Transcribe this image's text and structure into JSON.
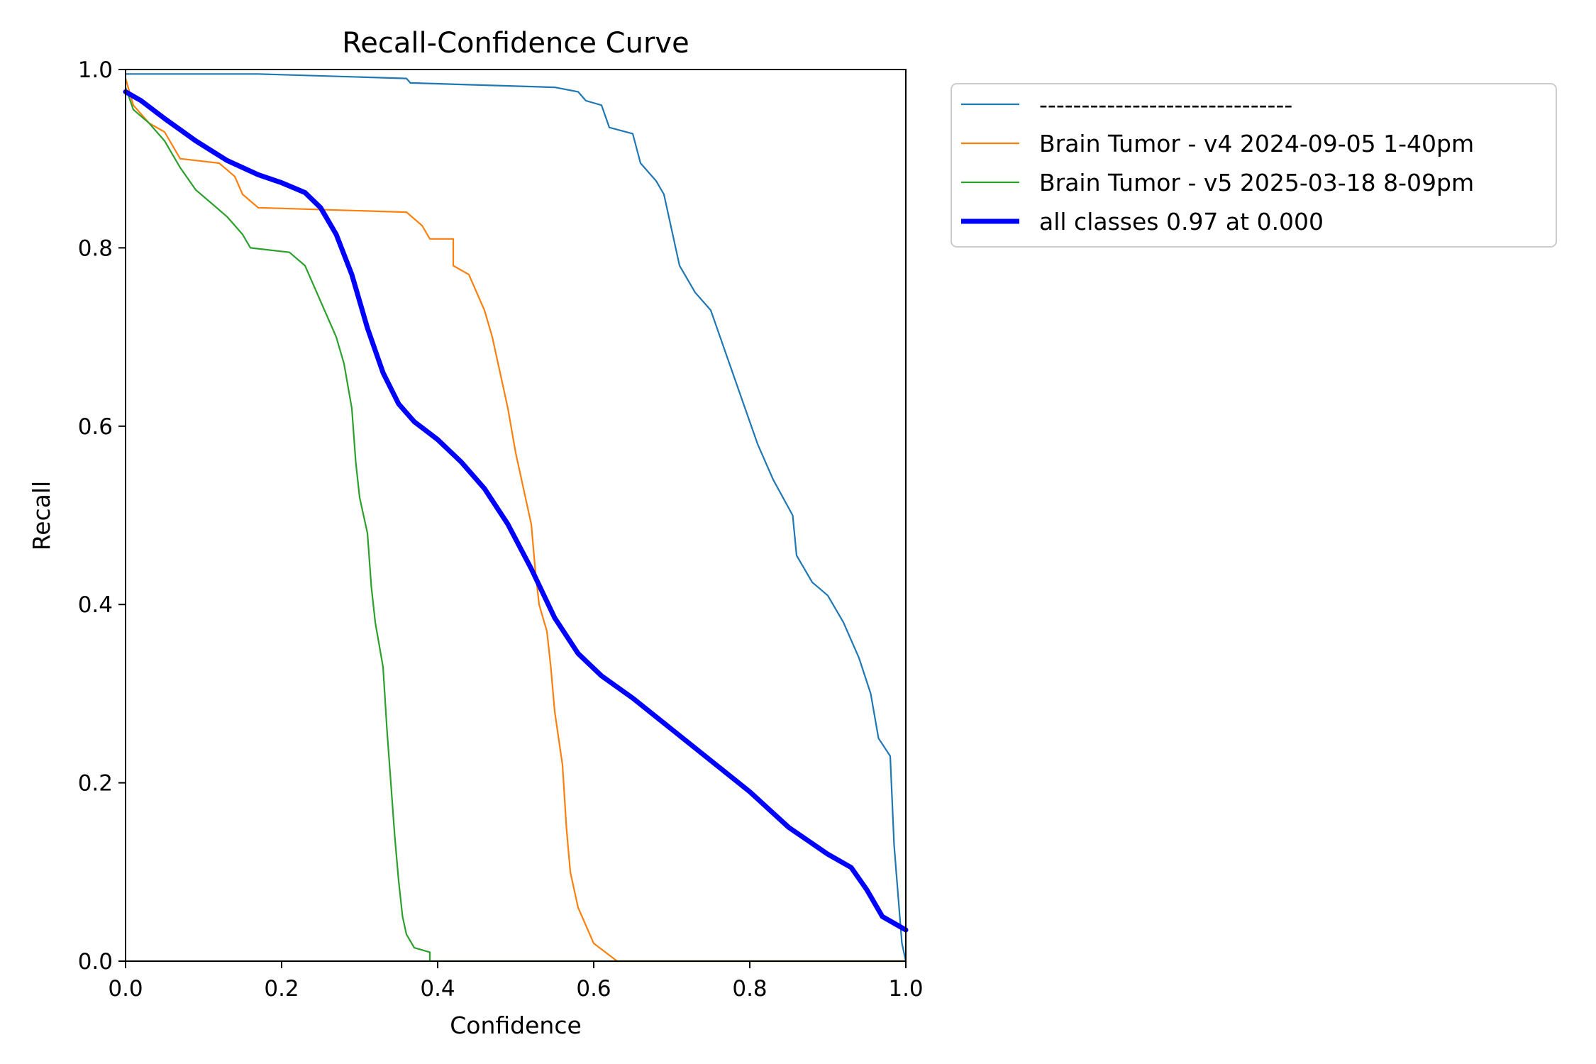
{
  "chart_data": {
    "type": "line",
    "title": "Recall-Confidence Curve",
    "xlabel": "Confidence",
    "ylabel": "Recall",
    "xlim": [
      0,
      1
    ],
    "ylim": [
      0,
      1
    ],
    "xticks": [
      "0.0",
      "0.2",
      "0.4",
      "0.6",
      "0.8",
      "1.0"
    ],
    "yticks": [
      "0.0",
      "0.2",
      "0.4",
      "0.6",
      "0.8",
      "1.0"
    ],
    "grid": false,
    "legend_position": "outside-top-right",
    "series": [
      {
        "name": "------------------------------",
        "color": "#1f77b4",
        "linewidth": "thin",
        "points": [
          [
            0.0,
            0.995
          ],
          [
            0.17,
            0.995
          ],
          [
            0.36,
            0.99
          ],
          [
            0.365,
            0.985
          ],
          [
            0.55,
            0.98
          ],
          [
            0.58,
            0.975
          ],
          [
            0.59,
            0.965
          ],
          [
            0.61,
            0.96
          ],
          [
            0.62,
            0.935
          ],
          [
            0.65,
            0.928
          ],
          [
            0.66,
            0.895
          ],
          [
            0.68,
            0.875
          ],
          [
            0.69,
            0.86
          ],
          [
            0.7,
            0.82
          ],
          [
            0.71,
            0.78
          ],
          [
            0.73,
            0.75
          ],
          [
            0.75,
            0.73
          ],
          [
            0.77,
            0.68
          ],
          [
            0.79,
            0.63
          ],
          [
            0.81,
            0.58
          ],
          [
            0.83,
            0.54
          ],
          [
            0.855,
            0.5
          ],
          [
            0.86,
            0.455
          ],
          [
            0.87,
            0.44
          ],
          [
            0.88,
            0.425
          ],
          [
            0.9,
            0.41
          ],
          [
            0.92,
            0.38
          ],
          [
            0.94,
            0.34
          ],
          [
            0.955,
            0.3
          ],
          [
            0.965,
            0.25
          ],
          [
            0.98,
            0.23
          ],
          [
            0.985,
            0.13
          ],
          [
            0.995,
            0.02
          ],
          [
            1.0,
            0.0
          ]
        ]
      },
      {
        "name": "Brain Tumor - v4 2024-09-05 1-40pm",
        "color": "#ff7f0e",
        "linewidth": "thin",
        "points": [
          [
            0.0,
            0.99
          ],
          [
            0.01,
            0.96
          ],
          [
            0.03,
            0.94
          ],
          [
            0.05,
            0.93
          ],
          [
            0.07,
            0.9
          ],
          [
            0.12,
            0.895
          ],
          [
            0.14,
            0.88
          ],
          [
            0.15,
            0.86
          ],
          [
            0.17,
            0.845
          ],
          [
            0.36,
            0.84
          ],
          [
            0.38,
            0.825
          ],
          [
            0.39,
            0.81
          ],
          [
            0.42,
            0.81
          ],
          [
            0.42,
            0.78
          ],
          [
            0.44,
            0.77
          ],
          [
            0.45,
            0.75
          ],
          [
            0.46,
            0.73
          ],
          [
            0.47,
            0.7
          ],
          [
            0.48,
            0.66
          ],
          [
            0.49,
            0.62
          ],
          [
            0.5,
            0.57
          ],
          [
            0.51,
            0.53
          ],
          [
            0.52,
            0.49
          ],
          [
            0.525,
            0.44
          ],
          [
            0.53,
            0.4
          ],
          [
            0.54,
            0.37
          ],
          [
            0.545,
            0.33
          ],
          [
            0.55,
            0.28
          ],
          [
            0.56,
            0.22
          ],
          [
            0.565,
            0.15
          ],
          [
            0.57,
            0.1
          ],
          [
            0.58,
            0.06
          ],
          [
            0.59,
            0.04
          ],
          [
            0.6,
            0.02
          ],
          [
            0.63,
            0.0
          ],
          [
            1.0,
            0.0
          ]
        ]
      },
      {
        "name": "Brain Tumor - v5 2025-03-18 8-09pm",
        "color": "#2ca02c",
        "linewidth": "thin",
        "points": [
          [
            0.0,
            0.98
          ],
          [
            0.01,
            0.955
          ],
          [
            0.03,
            0.94
          ],
          [
            0.05,
            0.92
          ],
          [
            0.07,
            0.89
          ],
          [
            0.09,
            0.865
          ],
          [
            0.11,
            0.85
          ],
          [
            0.13,
            0.835
          ],
          [
            0.15,
            0.815
          ],
          [
            0.16,
            0.8
          ],
          [
            0.21,
            0.795
          ],
          [
            0.23,
            0.78
          ],
          [
            0.24,
            0.76
          ],
          [
            0.25,
            0.74
          ],
          [
            0.27,
            0.7
          ],
          [
            0.28,
            0.67
          ],
          [
            0.29,
            0.62
          ],
          [
            0.295,
            0.56
          ],
          [
            0.3,
            0.52
          ],
          [
            0.31,
            0.48
          ],
          [
            0.315,
            0.42
          ],
          [
            0.32,
            0.38
          ],
          [
            0.33,
            0.33
          ],
          [
            0.335,
            0.26
          ],
          [
            0.34,
            0.2
          ],
          [
            0.345,
            0.14
          ],
          [
            0.35,
            0.09
          ],
          [
            0.355,
            0.05
          ],
          [
            0.36,
            0.03
          ],
          [
            0.37,
            0.015
          ],
          [
            0.39,
            0.01
          ],
          [
            0.39,
            0.0
          ],
          [
            1.0,
            0.0
          ]
        ]
      },
      {
        "name": "all classes 0.97 at 0.000",
        "color": "#0000ff",
        "linewidth": "thick",
        "points": [
          [
            0.0,
            0.975
          ],
          [
            0.02,
            0.965
          ],
          [
            0.05,
            0.945
          ],
          [
            0.09,
            0.92
          ],
          [
            0.13,
            0.898
          ],
          [
            0.17,
            0.882
          ],
          [
            0.2,
            0.873
          ],
          [
            0.23,
            0.862
          ],
          [
            0.25,
            0.845
          ],
          [
            0.27,
            0.815
          ],
          [
            0.29,
            0.77
          ],
          [
            0.31,
            0.71
          ],
          [
            0.33,
            0.66
          ],
          [
            0.35,
            0.625
          ],
          [
            0.37,
            0.605
          ],
          [
            0.4,
            0.585
          ],
          [
            0.43,
            0.56
          ],
          [
            0.46,
            0.53
          ],
          [
            0.49,
            0.49
          ],
          [
            0.52,
            0.44
          ],
          [
            0.55,
            0.385
          ],
          [
            0.58,
            0.345
          ],
          [
            0.61,
            0.32
          ],
          [
            0.65,
            0.295
          ],
          [
            0.7,
            0.26
          ],
          [
            0.75,
            0.225
          ],
          [
            0.8,
            0.19
          ],
          [
            0.85,
            0.15
          ],
          [
            0.9,
            0.12
          ],
          [
            0.93,
            0.105
          ],
          [
            0.95,
            0.08
          ],
          [
            0.97,
            0.05
          ],
          [
            1.0,
            0.035
          ]
        ]
      }
    ]
  }
}
